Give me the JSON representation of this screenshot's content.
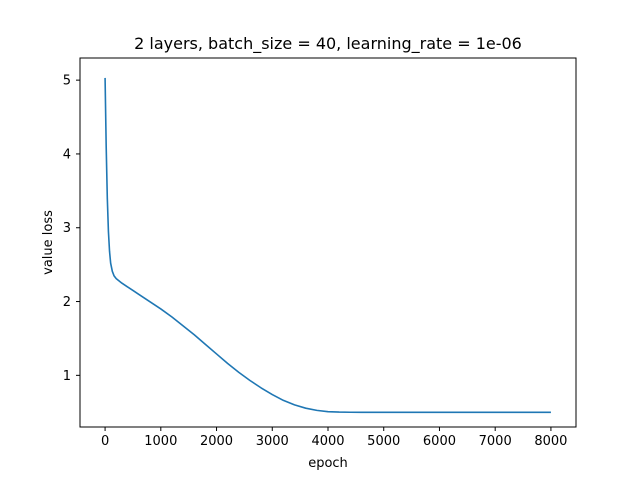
{
  "chart_data": {
    "type": "line",
    "title": "2 layers, batch_size = 40, learning_rate = 1e-06",
    "xlabel": "epoch",
    "ylabel": "value loss",
    "xlim": [
      -450,
      8450
    ],
    "ylim": [
      0.3,
      5.3
    ],
    "xticks": [
      0,
      1000,
      2000,
      3000,
      4000,
      5000,
      6000,
      7000,
      8000
    ],
    "yticks": [
      1,
      2,
      3,
      4,
      5
    ],
    "grid": false,
    "line_color": "#1f77b4",
    "series": [
      {
        "x": [
          0,
          20,
          40,
          60,
          80,
          100,
          130,
          160,
          200,
          250,
          300,
          400,
          500,
          600,
          800,
          1000,
          1200,
          1400,
          1600,
          1800,
          2000,
          2200,
          2400,
          2600,
          2800,
          3000,
          3200,
          3400,
          3600,
          3800,
          4000,
          4200,
          4400,
          4600,
          4800,
          5000,
          5500,
          6000,
          6500,
          7000,
          7500,
          8000
        ],
        "y": [
          5.03,
          4.1,
          3.4,
          2.95,
          2.68,
          2.52,
          2.41,
          2.35,
          2.31,
          2.28,
          2.25,
          2.2,
          2.15,
          2.1,
          2.0,
          1.9,
          1.79,
          1.67,
          1.55,
          1.42,
          1.29,
          1.16,
          1.04,
          0.93,
          0.83,
          0.74,
          0.66,
          0.6,
          0.555,
          0.525,
          0.508,
          0.502,
          0.5,
          0.499,
          0.499,
          0.499,
          0.499,
          0.499,
          0.499,
          0.499,
          0.499,
          0.499
        ]
      }
    ]
  }
}
